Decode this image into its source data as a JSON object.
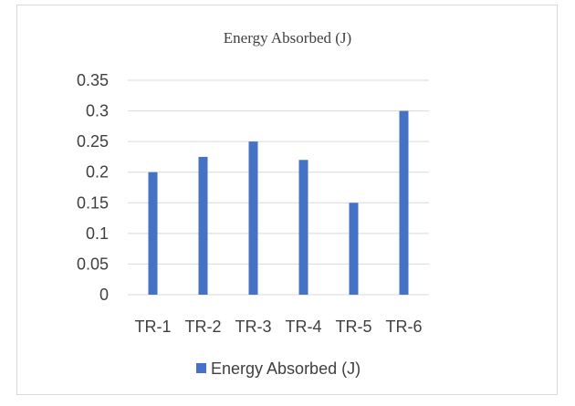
{
  "chart_data": {
    "type": "bar",
    "title": "Energy Absorbed (J)",
    "xlabel": "",
    "ylabel": "",
    "categories": [
      "TR-1",
      "TR-2",
      "TR-3",
      "TR-4",
      "TR-5",
      "TR-6"
    ],
    "series": [
      {
        "name": "Energy Absorbed (J)",
        "values": [
          0.2,
          0.225,
          0.25,
          0.22,
          0.15,
          0.3
        ],
        "color": "#4472c4"
      }
    ],
    "ylim": [
      0,
      0.35
    ],
    "yticks": [
      "0",
      "0.05",
      "0.1",
      "0.15",
      "0.2",
      "0.25",
      "0.3",
      "0.35"
    ],
    "grid": true,
    "legend_position": "bottom"
  }
}
